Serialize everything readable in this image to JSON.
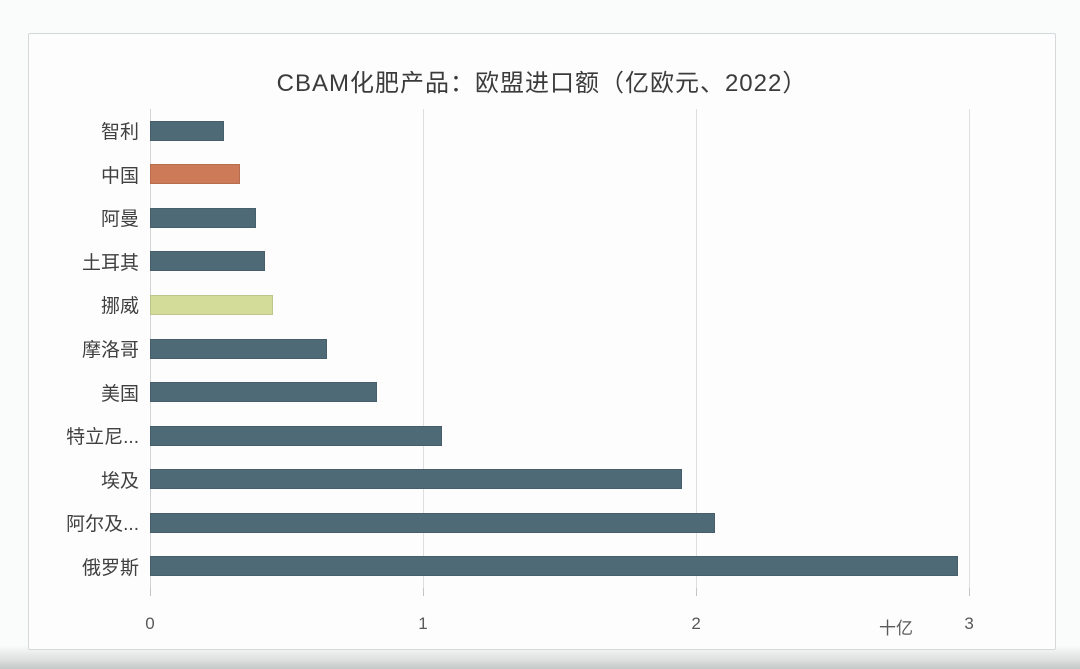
{
  "title": "CBAM化肥产品：欧盟进口额（亿欧元、2022）",
  "chart_data": {
    "type": "bar",
    "orientation": "horizontal",
    "title": "CBAM化肥产品：欧盟进口额（亿欧元、2022）",
    "categories": [
      "智利",
      "中国",
      "阿曼",
      "土耳其",
      "挪威",
      "摩洛哥",
      "美国",
      "特立尼...",
      "埃及",
      "阿尔及...",
      "俄罗斯"
    ],
    "values": [
      0.27,
      0.33,
      0.39,
      0.42,
      0.45,
      0.65,
      0.83,
      1.07,
      1.95,
      2.07,
      2.96
    ],
    "bar_colors": [
      "#4e6a76",
      "#cd7a59",
      "#4e6a76",
      "#4e6a76",
      "#d4dc9a",
      "#4e6a76",
      "#4e6a76",
      "#4e6a76",
      "#4e6a76",
      "#4e6a76",
      "#4e6a76"
    ],
    "xlabel": "",
    "ylabel": "",
    "axis_unit_label": "十亿",
    "x_ticks": [
      "0",
      "1",
      "2",
      "3"
    ],
    "x_tick_values": [
      0,
      1,
      2,
      3
    ],
    "xlim": [
      0,
      3.3
    ],
    "grid": true,
    "legend": "none"
  },
  "colors": {
    "bar_default": "#4e6a76",
    "bar_china": "#cd7a59",
    "bar_norway": "#d4dc9a",
    "gridline": "#dcdfe2",
    "frame_border": "#d6d9db",
    "title_text": "#3b3b3b",
    "label_text": "#404040",
    "tick_text": "#595959",
    "card_background": "#fdfdfe"
  }
}
